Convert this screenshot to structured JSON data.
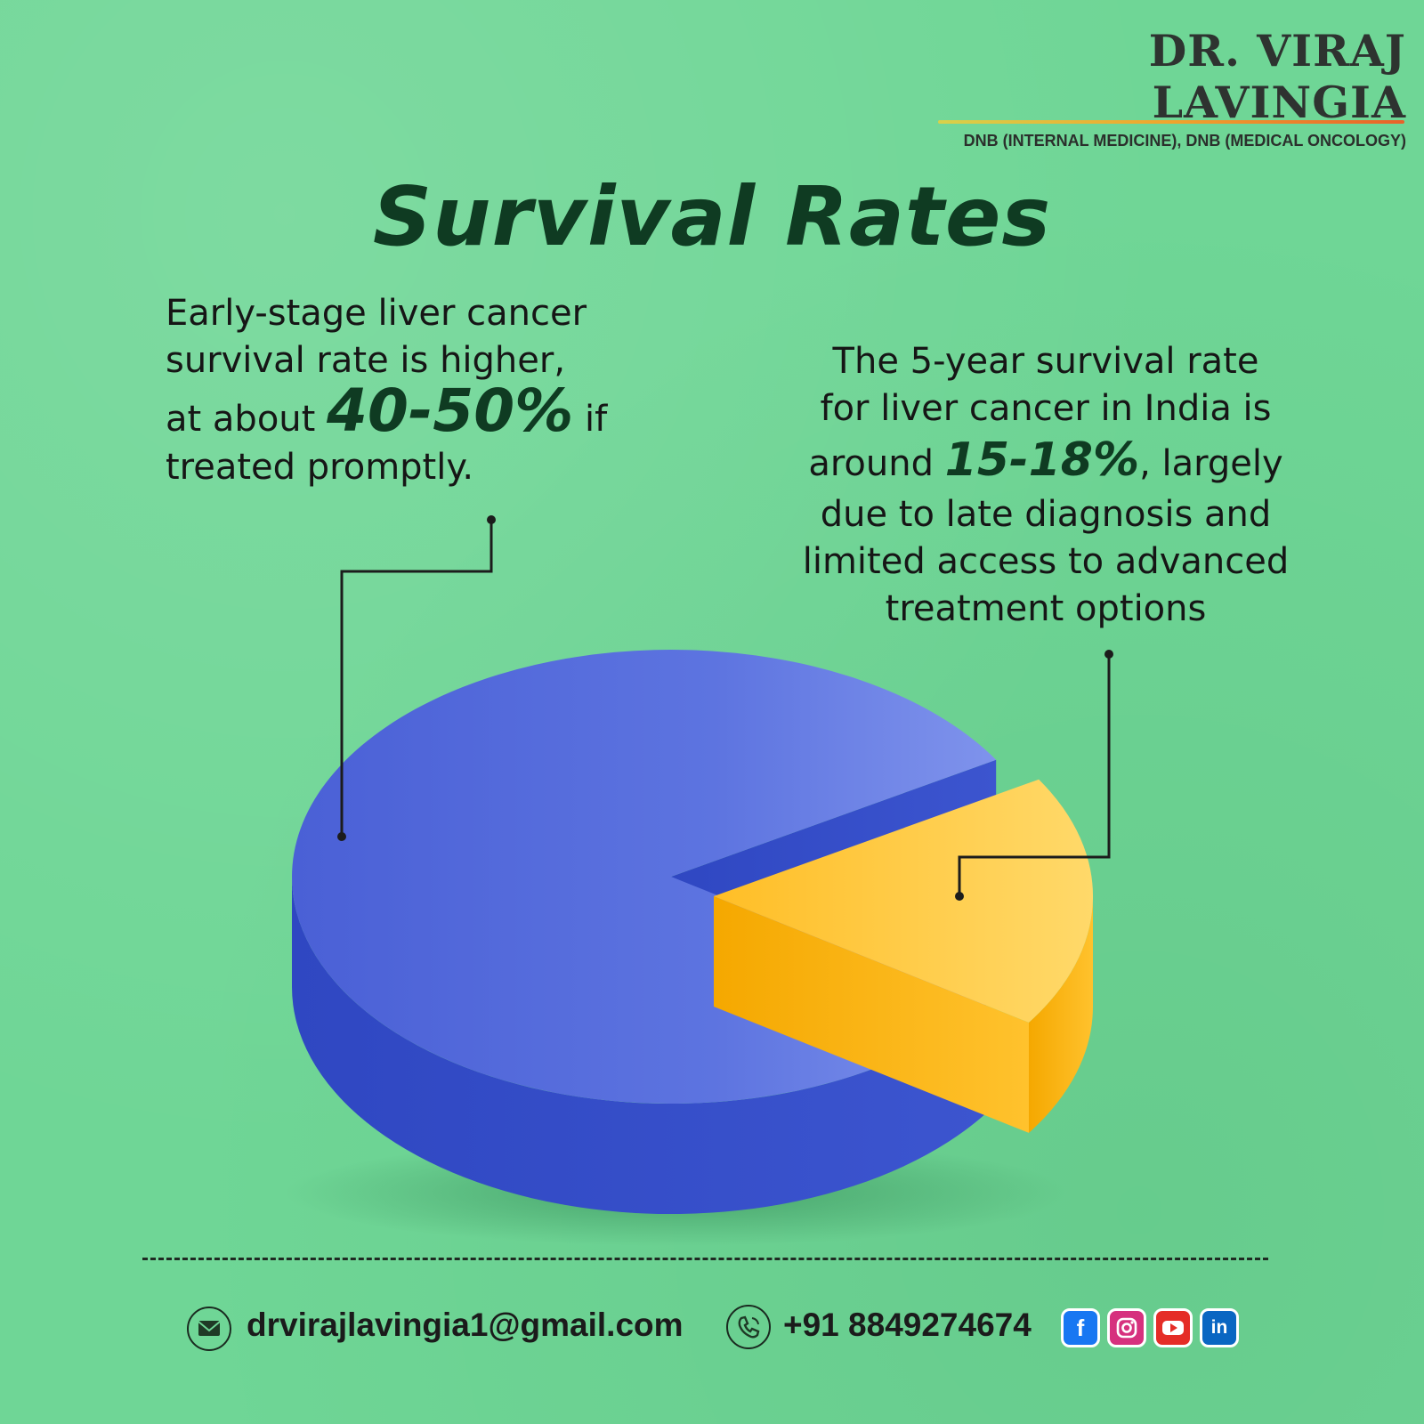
{
  "header": {
    "name": "DR. VIRAJ LAVINGIA",
    "credentials": "DNB (INTERNAL MEDICINE), DNB (MEDICAL ONCOLOGY)"
  },
  "title": "Survival Rates",
  "notes": {
    "left": {
      "line1": "Early-stage liver cancer",
      "line2": "survival rate is higher,",
      "pre": "at about ",
      "highlight": "40-50%",
      "post": " if",
      "line4": "treated promptly."
    },
    "right": {
      "line1": "The 5-year survival rate",
      "line2": "for liver cancer in India is",
      "pre": "around ",
      "highlight": "15-18%",
      "post": ", largely",
      "line4": "due to late diagnosis and",
      "line5": "limited access to advanced",
      "line6": "treatment options"
    }
  },
  "chart_data": {
    "type": "pie",
    "style": "3d",
    "slices": [
      {
        "value": 82,
        "color": "#4f66d8"
      },
      {
        "value": 18,
        "color": "#ffc532"
      }
    ]
  },
  "footer": {
    "email": "drvirajlavingia1@gmail.com",
    "phone": "+91 8849274674",
    "icons": [
      "email-icon",
      "phone-icon",
      "facebook-icon",
      "instagram-icon",
      "youtube-icon",
      "linkedin-icon"
    ],
    "social_colors": {
      "facebook": "#1877f2",
      "instagram": "#d6317e",
      "youtube": "#e52d27",
      "linkedin": "#0a66c2"
    }
  }
}
